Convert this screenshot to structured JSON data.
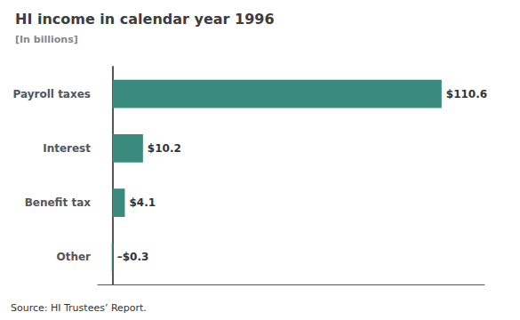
{
  "chart_data": {
    "type": "bar",
    "orientation": "horizontal",
    "title": "HI income in calendar year 1996",
    "subtitle": "[In billions]",
    "categories": [
      "Payroll taxes",
      "Interest",
      "Benefit tax",
      "Other"
    ],
    "values": [
      110.6,
      10.2,
      4.1,
      -0.3
    ],
    "value_labels": [
      "$110.6",
      "$10.2",
      "$4.1",
      "–$0.3"
    ],
    "data_labels": true,
    "color": "#3a8a7e",
    "xlim": [
      -5,
      125
    ],
    "tick_labels": "y",
    "grid": false,
    "annotations": [
      "Source: HI Trustees’ Report."
    ]
  }
}
